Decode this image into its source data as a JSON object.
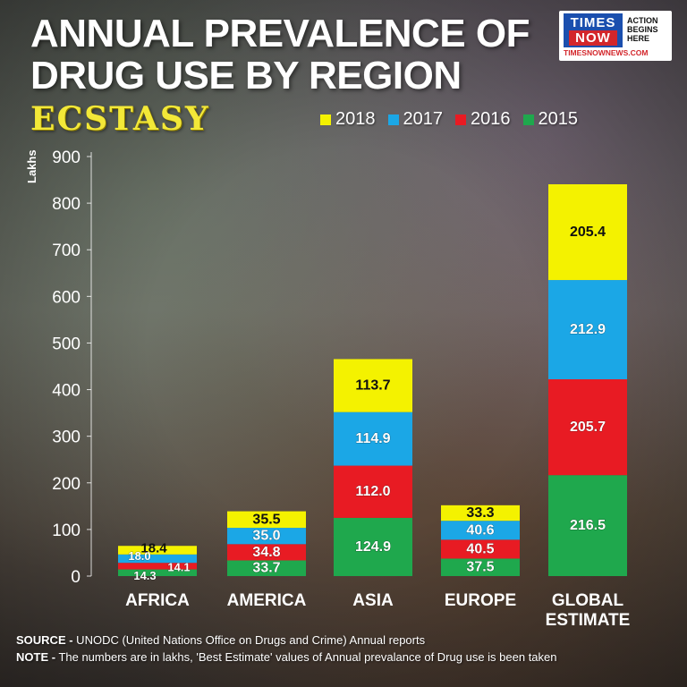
{
  "title_lines": [
    "ANNUAL PREVALENCE OF",
    "DRUG USE BY REGION"
  ],
  "subtitle": "ECSTASY",
  "logo": {
    "brand_top": "TIMES",
    "brand_bottom": "NOW",
    "tag": [
      "ACTION",
      "BEGINS",
      "HERE"
    ],
    "site": "TIMESNOWNEWS.COM"
  },
  "colors": {
    "2018": "#f4f200",
    "2017": "#1ba7e6",
    "2016": "#e81b23",
    "2015": "#1fa84d"
  },
  "chart_data": {
    "type": "bar",
    "stacked": true,
    "title": "ANNUAL PREVALENCE OF DRUG USE BY REGION",
    "subtitle": "ECSTASY",
    "ylabel": "Lakhs",
    "xlabel": "",
    "ylim": [
      0,
      900
    ],
    "yticks": [
      0,
      100,
      200,
      300,
      400,
      500,
      600,
      700,
      800,
      900
    ],
    "categories": [
      "AFRICA",
      "AMERICA",
      "ASIA",
      "EUROPE",
      "GLOBAL ESTIMATE"
    ],
    "category_lines": [
      [
        "AFRICA"
      ],
      [
        "AMERICA"
      ],
      [
        "ASIA"
      ],
      [
        "EUROPE"
      ],
      [
        "GLOBAL",
        "ESTIMATE"
      ]
    ],
    "legend_order": [
      "2018",
      "2017",
      "2016",
      "2015"
    ],
    "legend_position": "top-right",
    "series": [
      {
        "name": "2015",
        "values": [
          14.3,
          33.7,
          124.9,
          37.5,
          216.5
        ],
        "labels": [
          "14.3",
          "33.7",
          "124.9",
          "37.5",
          "216.5"
        ]
      },
      {
        "name": "2016",
        "values": [
          14.1,
          34.8,
          112.0,
          40.5,
          205.7
        ],
        "labels": [
          "14.1",
          "34.8",
          "112.0",
          "40.5",
          "205.7"
        ]
      },
      {
        "name": "2017",
        "values": [
          18.0,
          35.0,
          114.9,
          40.6,
          212.9
        ],
        "labels": [
          "18.0",
          "35.0",
          "114.9",
          "40.6",
          "212.9"
        ]
      },
      {
        "name": "2018",
        "values": [
          18.4,
          35.5,
          113.7,
          33.3,
          205.4
        ],
        "labels": [
          "18.4",
          "35.5",
          "113.7",
          "33.3",
          "205.4"
        ]
      }
    ]
  },
  "notes": {
    "source_label": "SOURCE -",
    "source_text": " UNODC (United Nations Office on Drugs and Crime) Annual reports",
    "note_label": "NOTE -",
    "note_text": " The numbers are in lakhs, 'Best Estimate' values of Annual prevalance of Drug use is been taken"
  }
}
